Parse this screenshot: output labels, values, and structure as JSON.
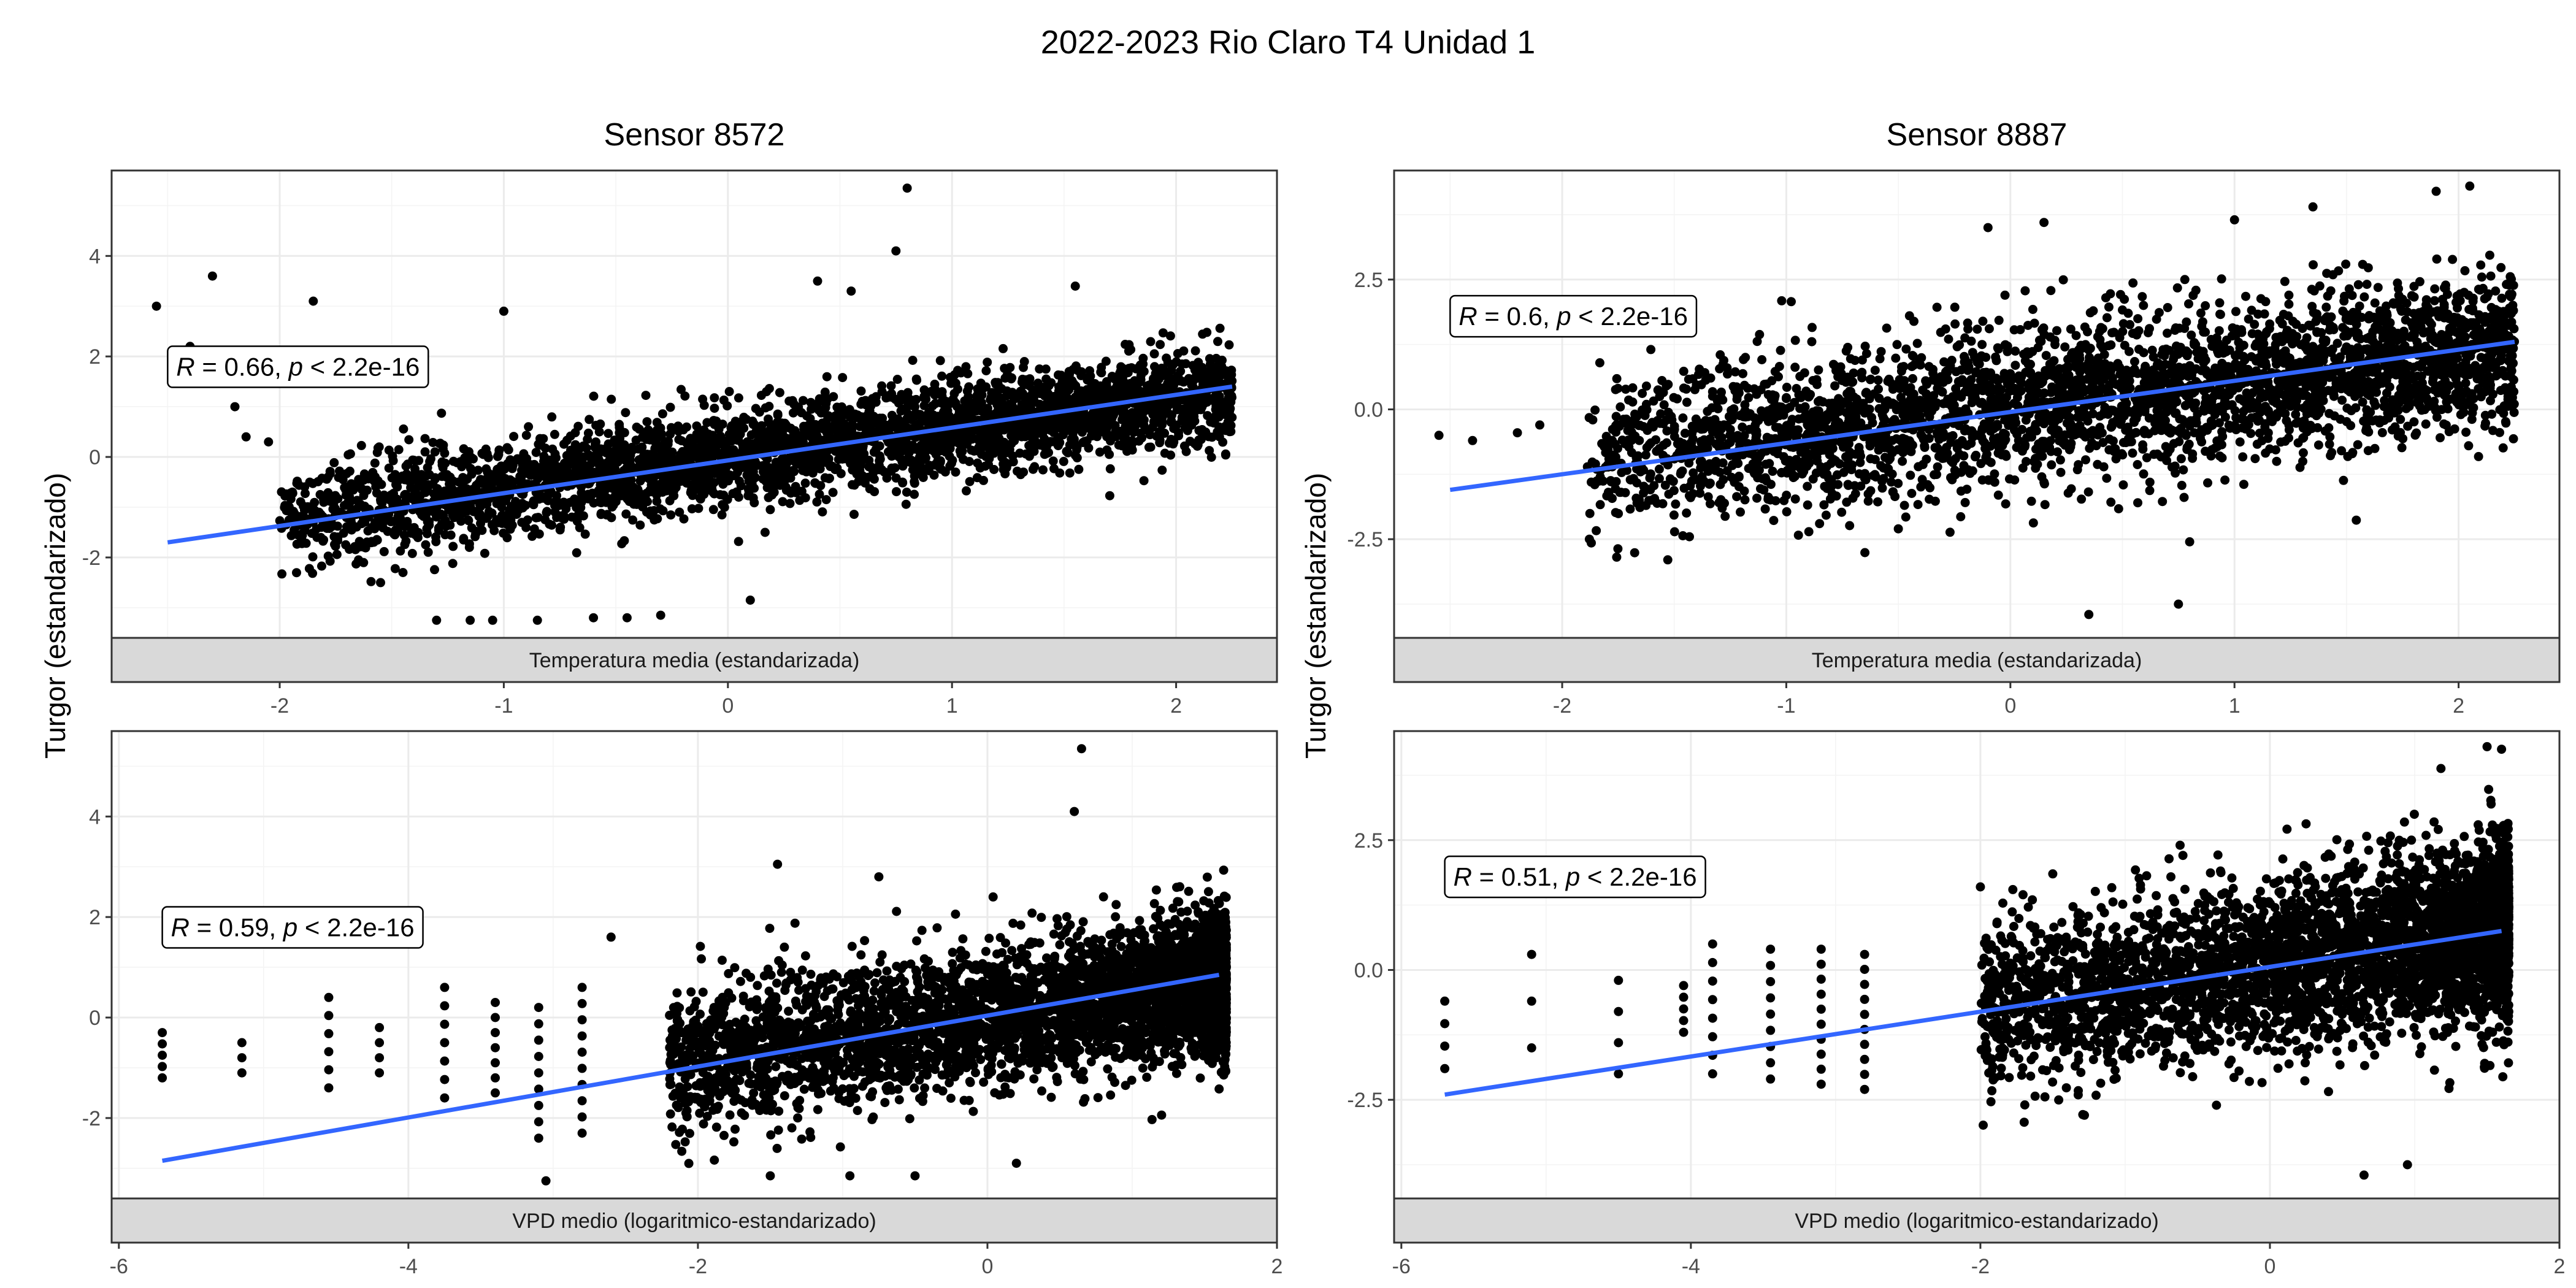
{
  "figure_title": "2022-2023 Rio Claro T4 Unidad 1",
  "chart_data": [
    {
      "type": "scatter",
      "id": "p1",
      "panel_title": "Sensor 8572",
      "ylabel": "Turgor (estandarizado)",
      "strip_label": "Temperatura media (estandarizada)",
      "xlim": [
        -2.75,
        2.45
      ],
      "ylim": [
        -3.6,
        5.7
      ],
      "xticks": [
        -2,
        -1,
        0,
        1,
        2
      ],
      "xtick_labels": [
        "-2",
        "-1",
        "0",
        "1",
        "2"
      ],
      "yticks": [
        -2,
        0,
        2,
        4
      ],
      "ytick_labels": [
        "-2",
        "0",
        "2",
        "4"
      ],
      "annotation": {
        "r_label": "R",
        "r_value": "= 0.66, ",
        "p_label": "p",
        "p_value": " < 2.2e-16",
        "x": -2.5,
        "y": 1.8
      },
      "fit": {
        "x": [
          -2.5,
          2.25
        ],
        "y": [
          -1.7,
          1.4
        ]
      },
      "cloud": {
        "x_range": [
          -2.0,
          2.25
        ],
        "mean_at_xmin": -1.2,
        "mean_at_xmax": 1.3,
        "spread": 0.5,
        "count": 3400
      },
      "outliers": [
        [
          -2.55,
          3.0
        ],
        [
          -2.3,
          3.6
        ],
        [
          -1.85,
          3.1
        ],
        [
          -2.4,
          2.2
        ],
        [
          -2.2,
          1.0
        ],
        [
          -2.15,
          0.4
        ],
        [
          -2.05,
          0.3
        ],
        [
          0.8,
          5.35
        ],
        [
          0.75,
          4.1
        ],
        [
          -1.3,
          -3.25
        ],
        [
          -1.15,
          -3.25
        ],
        [
          -1.05,
          -3.25
        ],
        [
          -0.85,
          -3.25
        ],
        [
          -0.6,
          -3.2
        ],
        [
          -0.45,
          -3.2
        ],
        [
          -0.3,
          -3.15
        ],
        [
          0.1,
          -2.85
        ],
        [
          -1.0,
          2.9
        ],
        [
          0.4,
          3.5
        ],
        [
          1.55,
          3.4
        ],
        [
          0.55,
          3.3
        ],
        [
          -1.55,
          -2.5
        ],
        [
          -1.45,
          -2.3
        ]
      ]
    },
    {
      "type": "scatter",
      "id": "p2",
      "panel_title": "Sensor 8887",
      "ylabel": "Turgor (estandarizado)",
      "strip_label": "Temperatura media (estandarizada)",
      "xlim": [
        -2.75,
        2.45
      ],
      "ylim": [
        -4.4,
        4.6
      ],
      "xticks": [
        -2,
        -1,
        0,
        1,
        2
      ],
      "xtick_labels": [
        "-2",
        "-1",
        "0",
        "1",
        "2"
      ],
      "yticks": [
        -2.5,
        0,
        2.5
      ],
      "ytick_labels": [
        "-2.5",
        "0.0",
        "2.5"
      ],
      "annotation": {
        "r_label": "R",
        "r_value": "= 0.6, ",
        "p_label": "p",
        "p_value": " < 2.2e-16",
        "x": -2.5,
        "y": 1.8
      },
      "fit": {
        "x": [
          -2.5,
          2.25
        ],
        "y": [
          -1.55,
          1.3
        ]
      },
      "cloud": {
        "x_range": [
          -1.9,
          2.25
        ],
        "mean_at_xmin": -0.9,
        "mean_at_xmax": 1.2,
        "spread": 0.75,
        "count": 3400
      },
      "outliers": [
        [
          -2.55,
          -0.5
        ],
        [
          -2.4,
          -0.6
        ],
        [
          -2.2,
          -0.45
        ],
        [
          -2.1,
          -0.3
        ],
        [
          0.35,
          -3.95
        ],
        [
          0.75,
          -3.75
        ],
        [
          1.9,
          4.2
        ],
        [
          2.05,
          4.3
        ],
        [
          -0.1,
          3.5
        ],
        [
          0.15,
          3.6
        ],
        [
          1.0,
          3.65
        ],
        [
          1.35,
          3.9
        ],
        [
          0.8,
          -2.55
        ],
        [
          -0.5,
          -2.3
        ]
      ]
    },
    {
      "type": "scatter",
      "id": "p3",
      "panel_title": "",
      "ylabel": "Turgor (estandarizado)",
      "strip_label": "VPD medio (logaritmico-estandarizado)",
      "xlim": [
        -6.05,
        2.0
      ],
      "ylim": [
        -3.6,
        5.7
      ],
      "xticks": [
        -6,
        -4,
        -2,
        0,
        2
      ],
      "xtick_labels": [
        "-6",
        "-4",
        "-2",
        "0",
        "2"
      ],
      "yticks": [
        -2,
        0,
        2,
        4
      ],
      "ytick_labels": [
        "-2",
        "0",
        "2",
        "4"
      ],
      "annotation": {
        "r_label": "R",
        "r_value": "= 0.59, ",
        "p_label": "p",
        "p_value": " < 2.2e-16",
        "x": -5.7,
        "y": 1.8
      },
      "fit": {
        "x": [
          -5.7,
          1.6
        ],
        "y": [
          -2.85,
          0.85
        ]
      },
      "cloud": {
        "x_range": [
          -2.2,
          1.65
        ],
        "mean_at_xmin": -0.9,
        "mean_at_xmax": 0.7,
        "spread": 0.7,
        "count": 3800
      },
      "columns": [
        [
          -5.7,
          -0.3,
          -1.2,
          5
        ],
        [
          -5.15,
          -0.5,
          -1.1,
          3
        ],
        [
          -4.55,
          0.4,
          -1.4,
          6
        ],
        [
          -4.2,
          -0.2,
          -1.1,
          4
        ],
        [
          -3.75,
          0.6,
          -1.6,
          7
        ],
        [
          -3.4,
          0.3,
          -1.5,
          7
        ],
        [
          -3.1,
          0.2,
          -2.4,
          9
        ],
        [
          -2.8,
          0.6,
          -2.3,
          10
        ]
      ],
      "outliers": [
        [
          0.65,
          5.35
        ],
        [
          0.6,
          4.1
        ],
        [
          -3.05,
          -3.25
        ],
        [
          -1.5,
          -3.15
        ],
        [
          -0.95,
          -3.15
        ],
        [
          -0.5,
          -3.15
        ],
        [
          0.2,
          -2.9
        ],
        [
          -1.45,
          3.05
        ],
        [
          -0.75,
          2.8
        ],
        [
          -2.6,
          1.6
        ]
      ]
    },
    {
      "type": "scatter",
      "id": "p4",
      "panel_title": "",
      "ylabel": "Turgor (estandarizado)",
      "strip_label": "VPD medio (logaritmico-estandarizado)",
      "xlim": [
        -6.05,
        2.0
      ],
      "ylim": [
        -4.4,
        4.6
      ],
      "xticks": [
        -6,
        -4,
        -2,
        0,
        2
      ],
      "xtick_labels": [
        "-6",
        "-4",
        "-2",
        "0",
        "2"
      ],
      "yticks": [
        -2.5,
        0,
        2.5
      ],
      "ytick_labels": [
        "-2.5",
        "0.0",
        "2.5"
      ],
      "annotation": {
        "r_label": "R",
        "r_value": "= 0.51, ",
        "p_label": "p",
        "p_value": " < 2.2e-16",
        "x": -5.7,
        "y": 1.8
      },
      "fit": {
        "x": [
          -5.7,
          1.6
        ],
        "y": [
          -2.4,
          0.75
        ]
      },
      "cloud": {
        "x_range": [
          -2.0,
          1.65
        ],
        "mean_at_xmin": -0.7,
        "mean_at_xmax": 0.8,
        "spread": 0.85,
        "count": 3800
      },
      "columns": [
        [
          -5.7,
          -0.6,
          -1.9,
          4
        ],
        [
          -5.1,
          0.3,
          -1.5,
          3
        ],
        [
          -4.5,
          -0.2,
          -2.0,
          4
        ],
        [
          -4.05,
          -0.3,
          -1.2,
          5
        ],
        [
          -3.85,
          0.5,
          -2.0,
          8
        ],
        [
          -3.45,
          0.4,
          -2.1,
          9
        ],
        [
          -3.1,
          0.4,
          -2.2,
          10
        ],
        [
          -2.8,
          0.3,
          -2.3,
          10
        ]
      ],
      "outliers": [
        [
          0.65,
          -3.95
        ],
        [
          0.95,
          -3.75
        ],
        [
          1.5,
          4.3
        ],
        [
          1.6,
          4.25
        ],
        [
          -2.0,
          1.6
        ],
        [
          -1.5,
          1.85
        ]
      ]
    }
  ]
}
